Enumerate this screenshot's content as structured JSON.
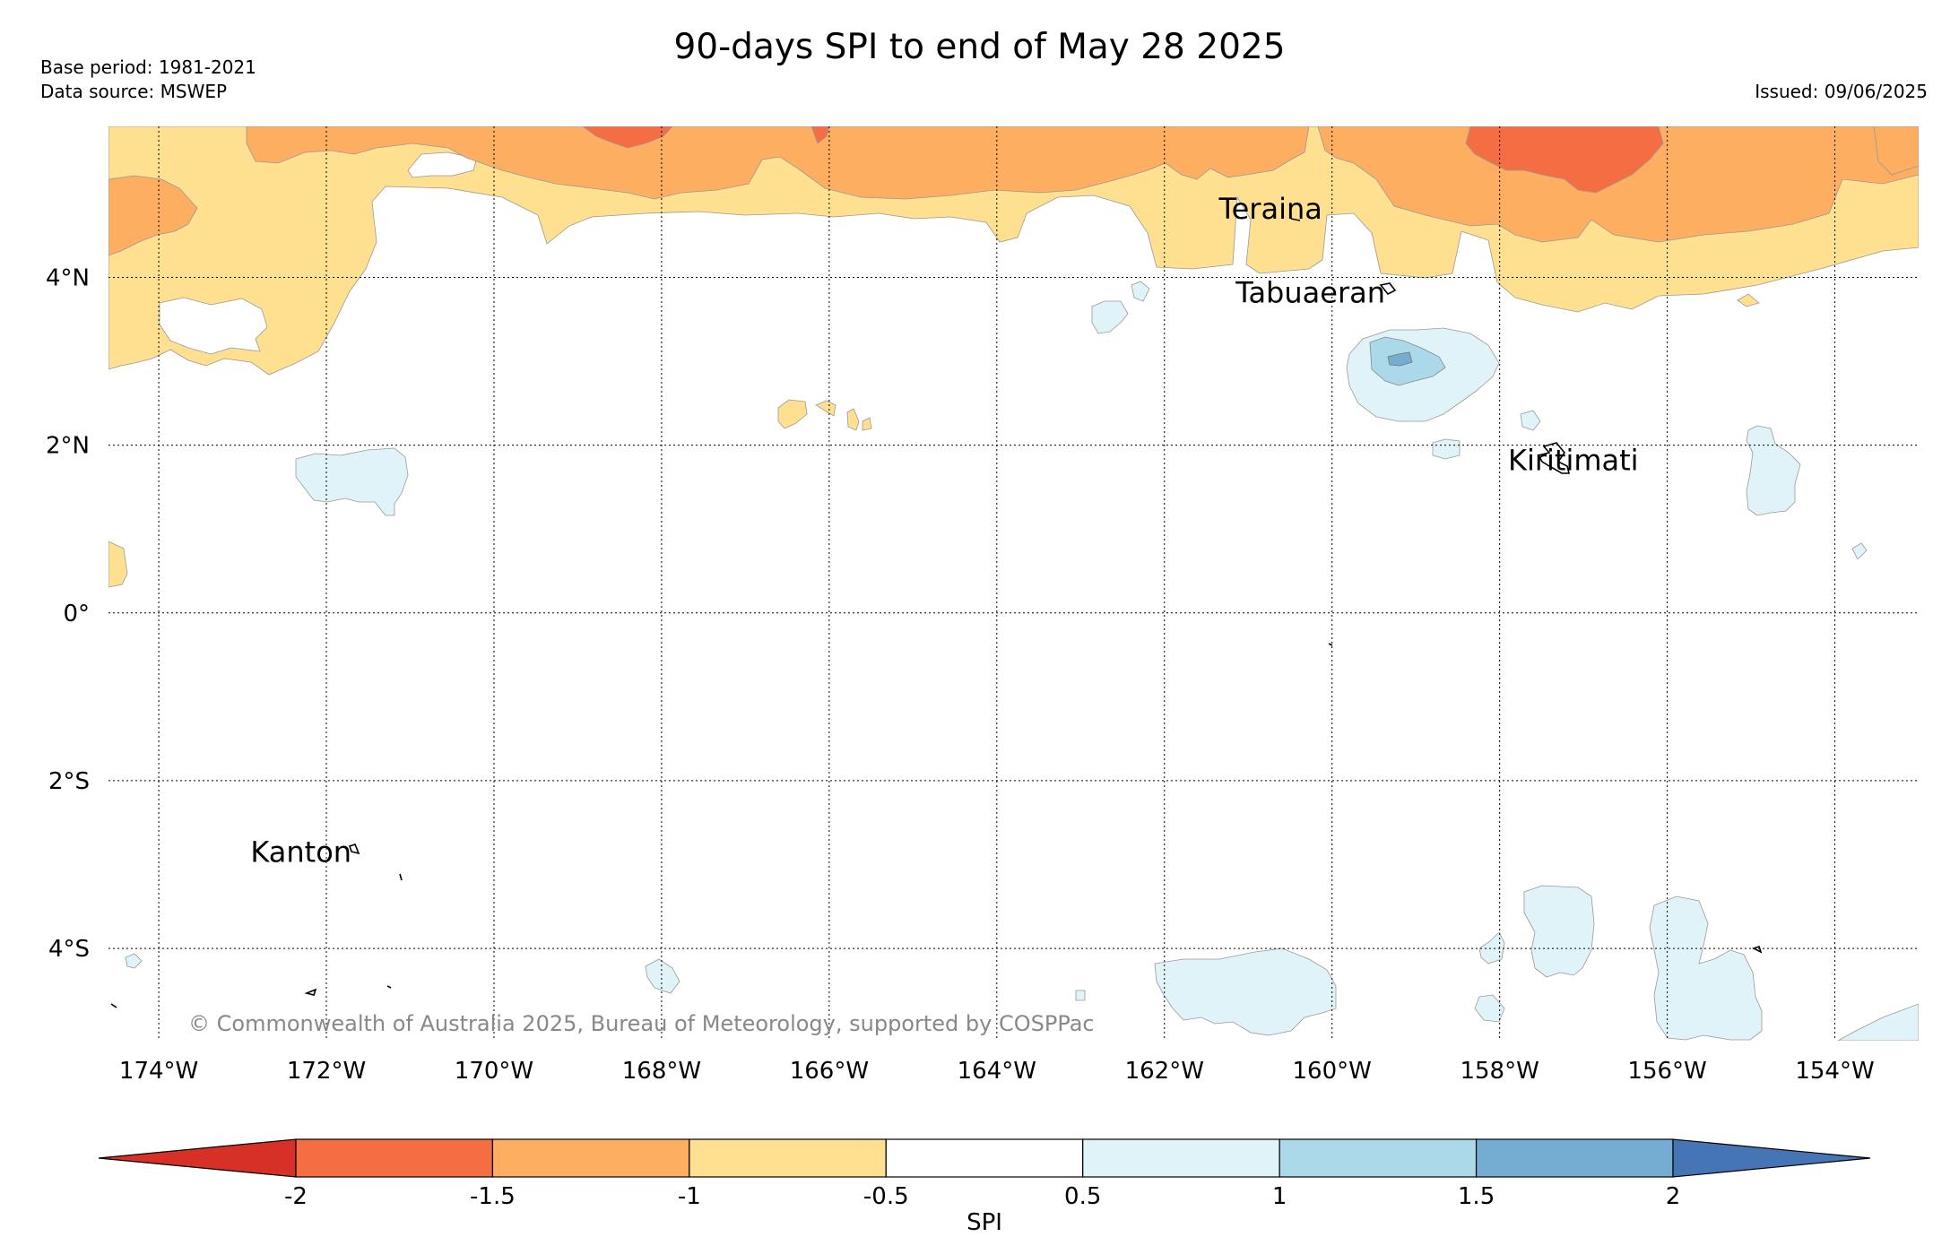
{
  "header": {
    "title": "90-days SPI to end of May 28 2025",
    "base_period": "Base period: 1981-2021",
    "data_source": "Data source: MSWEP",
    "issued": "Issued: 09/06/2025"
  },
  "map": {
    "lat_labels": [
      "4°N",
      "2°N",
      "0°",
      "2°S",
      "4°S"
    ],
    "lon_labels": [
      "174°W",
      "172°W",
      "170°W",
      "168°W",
      "166°W",
      "164°W",
      "162°W",
      "160°W",
      "158°W",
      "156°W",
      "154°W"
    ],
    "places": [
      "Teraina",
      "Tabuaeran",
      "Kiritimati",
      "Kanton"
    ],
    "copyright": "© Commonwealth of Australia 2025, Bureau of Meteorology, supported by COSPPac"
  },
  "legend": {
    "label": "SPI",
    "ticks": [
      "-2",
      "-1.5",
      "-1",
      "-0.5",
      "0.5",
      "1",
      "1.5",
      "2"
    ],
    "colors": [
      "#d73027",
      "#f46d43",
      "#fdae61",
      "#fee090",
      "#ffffff",
      "#e0f3f8",
      "#abd9e9",
      "#74add1",
      "#4575b4"
    ]
  }
}
